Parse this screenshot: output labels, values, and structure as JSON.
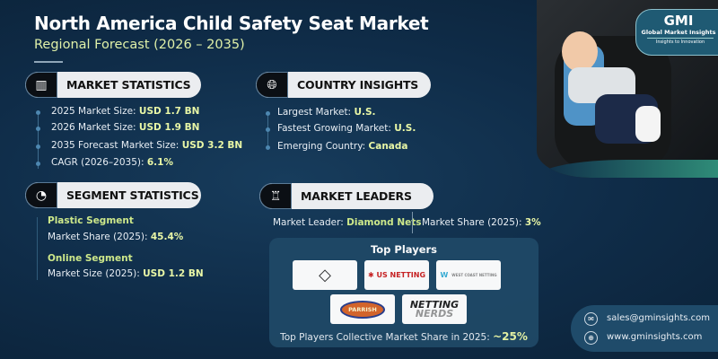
{
  "header": {
    "title": "North America Child Safety Seat Market",
    "subtitle": "Regional Forecast (2026 – 2035)"
  },
  "brand": {
    "logo_text": "GMI",
    "name": "Global Market Insights",
    "tagline": "Insights to Innovation"
  },
  "market_statistics": {
    "heading": "MARKET STATISTICS",
    "icon": "chart-globe-icon",
    "items": [
      {
        "label": "2025 Market Size: ",
        "value": "USD 1.7 BN"
      },
      {
        "label": "2026 Market Size: ",
        "value": "USD 1.9 BN"
      },
      {
        "label": "2035 Forecast Market Size: ",
        "value": "USD 3.2 BN"
      },
      {
        "label": "CAGR (2026–2035): ",
        "value": "6.1%"
      }
    ]
  },
  "country_insights": {
    "heading": "COUNTRY INSIGHTS",
    "icon": "globe-icon",
    "items": [
      {
        "label": "Largest Market: ",
        "value": "U.S."
      },
      {
        "label": "Fastest Growing Market: ",
        "value": "U.S."
      },
      {
        "label": "Emerging Country: ",
        "value": "Canada"
      }
    ]
  },
  "segment_statistics": {
    "heading": "SEGMENT STATISTICS",
    "icon": "segment-chart-icon",
    "segments": [
      {
        "name": "Plastic Segment",
        "label": "Market Share (2025): ",
        "value": "45.4%"
      },
      {
        "name": "Online Segment",
        "label": "Market Size (2025): ",
        "value": "USD 1.2 BN"
      }
    ]
  },
  "market_leaders": {
    "heading": "MARKET LEADERS",
    "icon": "leaders-icon",
    "leader_label": "Market Leader: ",
    "leader_value": "Diamond Nets",
    "share_label": "Market Share (2025): ",
    "share_value": "3%",
    "top_players_title": "Top Players",
    "players": [
      "Diamond Nets",
      "US Netting",
      "West Coast Netting",
      "Parrish",
      "Netting Nerds"
    ],
    "collective_label": "Top Players Collective Market Share in 2025: ",
    "collective_value": "~25%"
  },
  "contact": {
    "email": "sales@gminsights.com",
    "website": "www.gminsights.com"
  },
  "colors": {
    "background": "#0f2c48",
    "accent": "#e9f7a6",
    "segment_name": "#cde88a"
  }
}
